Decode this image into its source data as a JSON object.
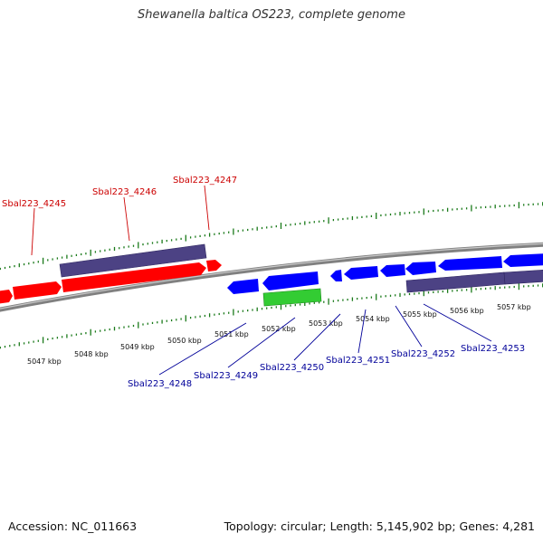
{
  "title": "Shewanella baltica OS223, complete genome",
  "footer": {
    "accession": "Accession: NC_011663",
    "summary": "Topology: circular; Length: 5,145,902 bp; Genes: 4,281"
  },
  "colors": {
    "forward_gene": "#ff0000",
    "reverse_gene": "#0000ff",
    "forward_label": "#cc0000",
    "reverse_label": "#000099",
    "cds_track": "#4c4284",
    "rna_track": "#33cc33",
    "backbone": "#808080",
    "ticks": "#1a7a1a"
  },
  "scale_labels": [
    "5047 kbp",
    "5048 kbp",
    "5049 kbp",
    "5050 kbp",
    "5051 kbp",
    "5052 kbp",
    "5053 kbp",
    "5054 kbp",
    "5055 kbp",
    "5056 kbp",
    "5057 kbp"
  ],
  "forward_gene_labels": [
    "Sbal223_4245",
    "Sbal223_4246",
    "Sbal223_4247"
  ],
  "reverse_gene_labels": [
    "Sbal223_4248",
    "Sbal223_4249",
    "Sbal223_4250",
    "Sbal223_4251",
    "Sbal223_4252",
    "Sbal223_4253"
  ]
}
